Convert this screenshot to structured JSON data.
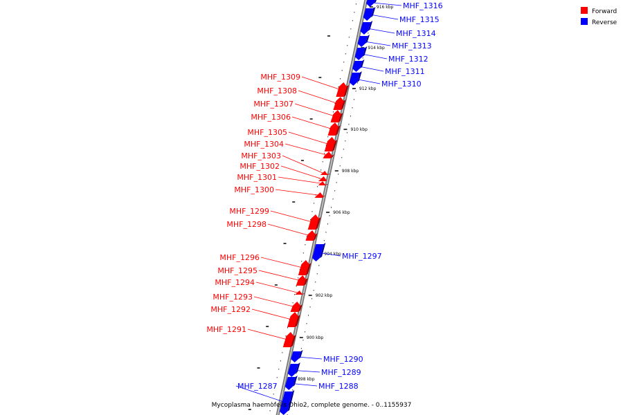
{
  "legend": {
    "forward_label": "Forward",
    "reverse_label": "Reverse",
    "forward_color": "#ff0000",
    "reverse_color": "#0000ff"
  },
  "caption": "Mycoplasma haemofelis Ohio2, complete genome. - 0..1155937",
  "scale_labels": [
    "898 kbp",
    "900 kbp",
    "902 kbp",
    "904 kbp",
    "906 kbp",
    "908 kbp",
    "910 kbp",
    "912 kbp",
    "914 kbp",
    "916 kbp"
  ],
  "genes": [
    {
      "name": "MHF_1316",
      "strand": "reverse"
    },
    {
      "name": "MHF_1315",
      "strand": "reverse"
    },
    {
      "name": "MHF_1314",
      "strand": "reverse"
    },
    {
      "name": "MHF_1313",
      "strand": "reverse"
    },
    {
      "name": "MHF_1312",
      "strand": "reverse"
    },
    {
      "name": "MHF_1311",
      "strand": "reverse"
    },
    {
      "name": "MHF_1310",
      "strand": "reverse"
    },
    {
      "name": "MHF_1309",
      "strand": "forward"
    },
    {
      "name": "MHF_1308",
      "strand": "forward"
    },
    {
      "name": "MHF_1307",
      "strand": "forward"
    },
    {
      "name": "MHF_1306",
      "strand": "forward"
    },
    {
      "name": "MHF_1305",
      "strand": "forward"
    },
    {
      "name": "MHF_1304",
      "strand": "forward"
    },
    {
      "name": "MHF_1303",
      "strand": "forward"
    },
    {
      "name": "MHF_1302",
      "strand": "forward"
    },
    {
      "name": "MHF_1301",
      "strand": "forward"
    },
    {
      "name": "MHF_1300",
      "strand": "forward"
    },
    {
      "name": "MHF_1299",
      "strand": "forward"
    },
    {
      "name": "MHF_1298",
      "strand": "forward"
    },
    {
      "name": "MHF_1297",
      "strand": "reverse"
    },
    {
      "name": "MHF_1296",
      "strand": "forward"
    },
    {
      "name": "MHF_1295",
      "strand": "forward"
    },
    {
      "name": "MHF_1294",
      "strand": "forward"
    },
    {
      "name": "MHF_1293",
      "strand": "forward"
    },
    {
      "name": "MHF_1292",
      "strand": "forward"
    },
    {
      "name": "MHF_1291",
      "strand": "forward"
    },
    {
      "name": "MHF_1290",
      "strand": "reverse"
    },
    {
      "name": "MHF_1289",
      "strand": "reverse"
    },
    {
      "name": "MHF_1288",
      "strand": "reverse"
    },
    {
      "name": "MHF_1287",
      "strand": "reverse"
    }
  ]
}
